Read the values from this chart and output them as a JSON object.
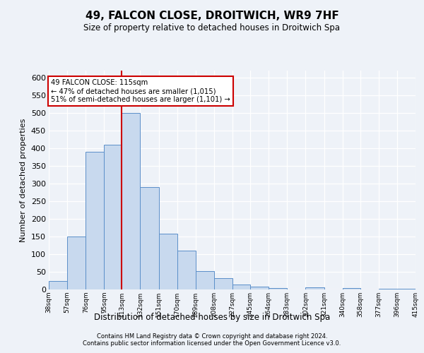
{
  "title": "49, FALCON CLOSE, DROITWICH, WR9 7HF",
  "subtitle": "Size of property relative to detached houses in Droitwich Spa",
  "xlabel": "Distribution of detached houses by size in Droitwich Spa",
  "ylabel": "Number of detached properties",
  "bar_heights": [
    25,
    150,
    390,
    410,
    500,
    290,
    158,
    110,
    53,
    33,
    15,
    8,
    5,
    0,
    7,
    0,
    5,
    0,
    3,
    2
  ],
  "bin_labels": [
    "38sqm",
    "57sqm",
    "76sqm",
    "95sqm",
    "113sqm",
    "132sqm",
    "151sqm",
    "170sqm",
    "189sqm",
    "208sqm",
    "227sqm",
    "245sqm",
    "264sqm",
    "283sqm",
    "302sqm",
    "321sqm",
    "340sqm",
    "358sqm",
    "377sqm",
    "396sqm",
    "415sqm"
  ],
  "bin_edges": [
    38,
    57,
    76,
    95,
    113,
    132,
    151,
    170,
    189,
    208,
    227,
    245,
    264,
    283,
    302,
    321,
    340,
    358,
    377,
    396,
    415
  ],
  "bar_color": "#c8d9ee",
  "bar_edge_color": "#5b8fc9",
  "vline_x": 113,
  "vline_color": "#cc0000",
  "annotation_title": "49 FALCON CLOSE: 115sqm",
  "annotation_line1": "← 47% of detached houses are smaller (1,015)",
  "annotation_line2": "51% of semi-detached houses are larger (1,101) →",
  "annotation_box_color": "#ffffff",
  "annotation_box_edge": "#cc0000",
  "ylim": [
    0,
    620
  ],
  "yticks": [
    0,
    50,
    100,
    150,
    200,
    250,
    300,
    350,
    400,
    450,
    500,
    550,
    600
  ],
  "footer1": "Contains HM Land Registry data © Crown copyright and database right 2024.",
  "footer2": "Contains public sector information licensed under the Open Government Licence v3.0.",
  "bg_color": "#eef2f8",
  "plot_bg_color": "#eef2f8",
  "grid_color": "#ffffff"
}
